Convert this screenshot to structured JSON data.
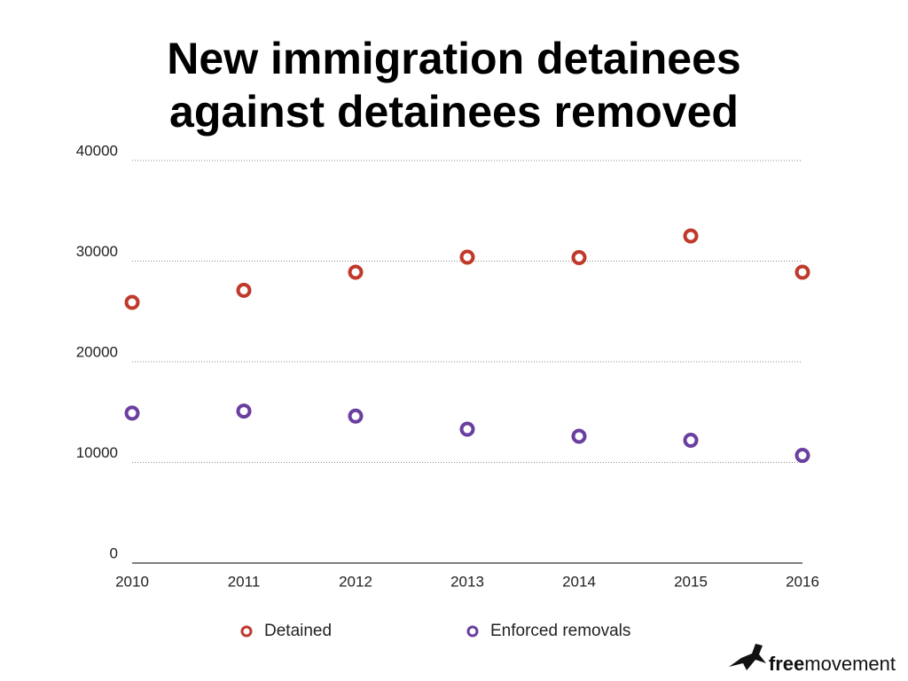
{
  "chart_data": {
    "type": "line",
    "title": "New immigration detainees against detainees removed",
    "categories": [
      "2010",
      "2011",
      "2012",
      "2013",
      "2014",
      "2015",
      "2016"
    ],
    "series": [
      {
        "name": "Detained",
        "color": "#c0392b",
        "values": [
          25900,
          27100,
          28900,
          30400,
          30350,
          32500,
          28900
        ]
      },
      {
        "name": "Enforced removals",
        "color": "#6a3fa0",
        "values": [
          14900,
          15100,
          14600,
          13300,
          12600,
          12200,
          10700
        ]
      }
    ],
    "ylim": [
      0,
      40000
    ],
    "yticks": [
      0,
      10000,
      20000,
      30000,
      40000
    ],
    "grid": true
  },
  "logo": {
    "bold": "free",
    "regular": "movement"
  }
}
